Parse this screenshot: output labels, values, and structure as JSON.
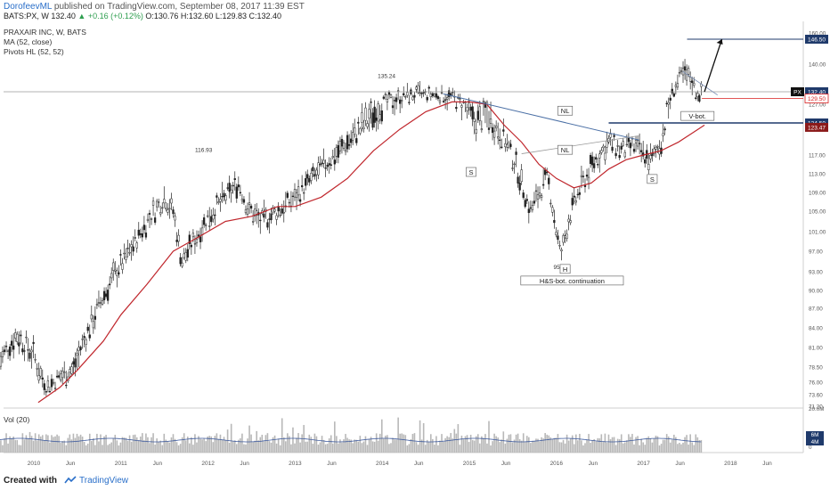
{
  "header": {
    "author": "DorofeevML",
    "published": "published on TradingView.com, September 08, 2017 11:39 EST",
    "symbol": "BATS:PX, W",
    "price": "132.40",
    "change": "▲ +0.16 (+0.12%)",
    "ohlc": "O:130.76 H:132.60 L:129.83 C:132.40"
  },
  "footer": {
    "created_with": "Created with",
    "brand": "TradingView"
  },
  "colors": {
    "candle": "#222222",
    "ma": "#c0272d",
    "neckline": "#4a6fa5",
    "level": "#1f3a6b",
    "axis_text": "#555555",
    "volume": "#b8b8b8",
    "volume_ma": "#3d5a9e",
    "red_tag": "#d81e1e",
    "dark_red_tag": "#8b1a1a"
  },
  "chart_data": [
    {
      "type": "candlestick",
      "title": "PRAXAIR INC, W, BATS",
      "indicators": [
        "MA (52, close)",
        "Pivots HL (52, 52)"
      ],
      "x_range": [
        "2009-09",
        "2018-09"
      ],
      "ylim": [
        70,
        160
      ],
      "y_ticks": [
        "160.00",
        "140.00",
        "127.00",
        "117.00",
        "113.00",
        "109.00",
        "105.00",
        "101.00",
        "97.00",
        "93.00",
        "90.00",
        "87.00",
        "84.00",
        "81.00",
        "78.50",
        "76.00",
        "73.60",
        "71.20"
      ],
      "x_ticks": [
        {
          "label": "2010",
          "date": 2010.0
        },
        {
          "label": "Jun",
          "date": 2010.42
        },
        {
          "label": "2011",
          "date": 2011.0
        },
        {
          "label": "Jun",
          "date": 2011.42
        },
        {
          "label": "2012",
          "date": 2012.0
        },
        {
          "label": "Jun",
          "date": 2012.42
        },
        {
          "label": "2013",
          "date": 2013.0
        },
        {
          "label": "Jun",
          "date": 2013.42
        },
        {
          "label": "2014",
          "date": 2014.0
        },
        {
          "label": "Jun",
          "date": 2014.42
        },
        {
          "label": "2015",
          "date": 2015.0
        },
        {
          "label": "Jun",
          "date": 2015.42
        },
        {
          "label": "2016",
          "date": 2016.0
        },
        {
          "label": "Jun",
          "date": 2016.42
        },
        {
          "label": "2017",
          "date": 2017.0
        },
        {
          "label": "Jun",
          "date": 2017.42
        },
        {
          "label": "2018",
          "date": 2018.0
        },
        {
          "label": "Jun",
          "date": 2018.42
        }
      ],
      "price_path": [
        [
          2009.6,
          79
        ],
        [
          2009.8,
          83
        ],
        [
          2010.0,
          80
        ],
        [
          2010.15,
          75
        ],
        [
          2010.3,
          77
        ],
        [
          2010.45,
          78
        ],
        [
          2010.7,
          86
        ],
        [
          2010.9,
          92
        ],
        [
          2011.1,
          97
        ],
        [
          2011.3,
          103
        ],
        [
          2011.5,
          108
        ],
        [
          2011.6,
          105
        ],
        [
          2011.7,
          95
        ],
        [
          2011.8,
          98
        ],
        [
          2012.0,
          104
        ],
        [
          2012.2,
          108
        ],
        [
          2012.35,
          111
        ],
        [
          2012.45,
          106
        ],
        [
          2012.6,
          103
        ],
        [
          2012.8,
          105
        ],
        [
          2013.0,
          108
        ],
        [
          2013.3,
          114
        ],
        [
          2013.6,
          120
        ],
        [
          2013.8,
          124
        ],
        [
          2014.0,
          128
        ],
        [
          2014.2,
          130
        ],
        [
          2014.4,
          131
        ],
        [
          2014.6,
          131
        ],
        [
          2014.8,
          130
        ],
        [
          2014.95,
          127
        ],
        [
          2015.05,
          124
        ],
        [
          2015.2,
          126
        ],
        [
          2015.4,
          121
        ],
        [
          2015.55,
          114
        ],
        [
          2015.7,
          105
        ],
        [
          2015.8,
          109
        ],
        [
          2015.9,
          112
        ],
        [
          2016.0,
          101
        ],
        [
          2016.05,
          96
        ],
        [
          2016.15,
          104
        ],
        [
          2016.3,
          111
        ],
        [
          2016.45,
          116
        ],
        [
          2016.6,
          120
        ],
        [
          2016.75,
          118
        ],
        [
          2016.9,
          119
        ],
        [
          2017.0,
          117
        ],
        [
          2017.1,
          116
        ],
        [
          2017.2,
          120
        ],
        [
          2017.35,
          133
        ],
        [
          2017.45,
          137
        ],
        [
          2017.55,
          136
        ],
        [
          2017.6,
          132
        ],
        [
          2017.67,
          131
        ]
      ],
      "moving_average": [
        [
          2010.05,
          72
        ],
        [
          2010.3,
          75
        ],
        [
          2010.5,
          78
        ],
        [
          2010.8,
          82
        ],
        [
          2011.0,
          86
        ],
        [
          2011.3,
          91
        ],
        [
          2011.6,
          97
        ],
        [
          2011.9,
          100
        ],
        [
          2012.2,
          103
        ],
        [
          2012.5,
          104
        ],
        [
          2012.8,
          106
        ],
        [
          2013.0,
          106
        ],
        [
          2013.3,
          108
        ],
        [
          2013.6,
          112
        ],
        [
          2013.9,
          118
        ],
        [
          2014.2,
          123
        ],
        [
          2014.5,
          126
        ],
        [
          2014.8,
          128
        ],
        [
          2015.0,
          128
        ],
        [
          2015.2,
          127
        ],
        [
          2015.4,
          124
        ],
        [
          2015.6,
          120
        ],
        [
          2015.8,
          115
        ],
        [
          2016.0,
          112
        ],
        [
          2016.2,
          110
        ],
        [
          2016.4,
          111
        ],
        [
          2016.6,
          114
        ],
        [
          2016.8,
          116
        ],
        [
          2017.0,
          117
        ],
        [
          2017.2,
          118
        ],
        [
          2017.4,
          120
        ],
        [
          2017.55,
          122
        ],
        [
          2017.7,
          124
        ]
      ],
      "pivots": [
        {
          "label": "116.93",
          "date": 2011.95,
          "value": 116.93
        },
        {
          "label": "135.24",
          "date": 2014.05,
          "value": 135.24
        },
        {
          "label": "95.60",
          "date": 2016.05,
          "value": 95.6
        }
      ],
      "annotations": [
        {
          "label": "S",
          "date": 2015.02,
          "value": 113
        },
        {
          "label": "H",
          "date": 2016.1,
          "value": 93.2
        },
        {
          "label": "H&S-bot. continuation",
          "date": 2016.18,
          "value": 91.3
        },
        {
          "label": "S",
          "date": 2017.1,
          "value": 111.5
        },
        {
          "label": "NL",
          "date": 2016.1,
          "value": 125.9
        },
        {
          "label": "NL",
          "date": 2016.1,
          "value": 117.8
        },
        {
          "label": "V-bot.",
          "date": 2017.62,
          "value": 125.2
        }
      ],
      "neckline": [
        [
          2014.7,
          131.5
        ],
        [
          2016.95,
          120.5
        ]
      ],
      "resistance_level": 146.5,
      "support_level": 124.5,
      "current_price": 132.4,
      "price_tags": [
        {
          "label": "146.50",
          "value": 146.5,
          "style": "dark"
        },
        {
          "label": "132.40",
          "value": 132.4,
          "style": "dark",
          "prefix": "PX"
        },
        {
          "label": "129.50",
          "value": 129.5,
          "style": "red"
        },
        {
          "label": "124.50",
          "value": 124.5,
          "style": "dark"
        },
        {
          "label": "123.47",
          "value": 123.47,
          "style": "darkred"
        }
      ],
      "target_arrow": [
        [
          2017.7,
          132.4
        ],
        [
          2017.9,
          146.5
        ]
      ]
    },
    {
      "type": "bar",
      "title": "Vol (20)",
      "y_ticks": [
        "20.0M",
        "0"
      ],
      "price_tags": [
        {
          "label": "6M",
          "value": 6
        },
        {
          "label": "4M",
          "value": 4
        }
      ]
    }
  ]
}
